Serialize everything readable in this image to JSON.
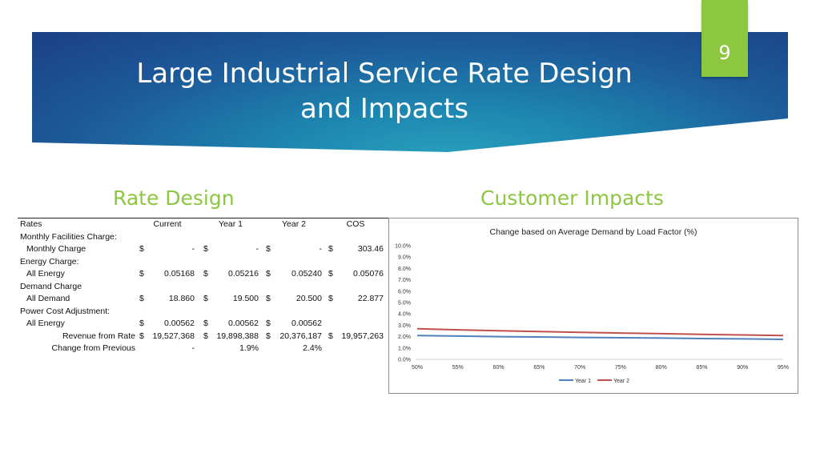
{
  "slide": {
    "title_lines": [
      "Large Industrial Service Rate Design",
      "and Impacts"
    ],
    "page_number": "9"
  },
  "left_heading": "Rate Design",
  "right_heading": "Customer Impacts",
  "rate_table": {
    "header": {
      "label": "Rates",
      "cols": [
        "Current",
        "Year 1",
        "Year 2",
        "COS"
      ]
    },
    "rows": [
      {
        "label": "Monthly Facilities Charge:"
      },
      {
        "label": "Monthly Charge",
        "vals": [
          "$",
          "-",
          "$",
          "-",
          "$",
          "-",
          "$",
          "303.46"
        ]
      },
      {
        "label": "Energy Charge:"
      },
      {
        "label": "All Energy",
        "vals": [
          "$",
          "0.05168",
          "$",
          "0.05216",
          "$",
          "0.05240",
          "$",
          "0.05076"
        ]
      },
      {
        "label": "Demand Charge"
      },
      {
        "label": "All Demand",
        "vals": [
          "$",
          "18.860",
          "$",
          "19.500",
          "$",
          "20.500",
          "$",
          "22.877"
        ]
      },
      {
        "label": "Power Cost Adjustment:"
      },
      {
        "label": "All Energy",
        "vals": [
          "$",
          "0.00562",
          "$",
          "0.00562",
          "$",
          "0.00562",
          "",
          ""
        ]
      },
      {
        "label": "Revenue from Rate",
        "vals": [
          "$",
          "19,527,368",
          "$",
          "19,898,388",
          "$",
          "20,376,187",
          "$",
          "19,957,263"
        ]
      },
      {
        "label": "Change from Previous",
        "vals": [
          "",
          "-",
          "",
          "1.9%",
          "",
          "2.4%",
          "",
          ""
        ]
      }
    ]
  },
  "chart_data": {
    "type": "line",
    "title": "Change based on Average Demand by Load Factor (%)",
    "x": [
      "50%",
      "55%",
      "60%",
      "65%",
      "70%",
      "75%",
      "80%",
      "85%",
      "90%",
      "95%"
    ],
    "y_ticks": [
      "0.0%",
      "1.0%",
      "2.0%",
      "3.0%",
      "4.0%",
      "5.0%",
      "6.0%",
      "7.0%",
      "8.0%",
      "9.0%",
      "10.0%"
    ],
    "ylim": [
      0,
      10
    ],
    "grid": false,
    "legend_position": "bottom",
    "series": [
      {
        "name": "Year 1",
        "color": "#4f81bd",
        "values": [
          2.1,
          2.05,
          2.0,
          1.97,
          1.93,
          1.9,
          1.87,
          1.83,
          1.8,
          1.76
        ]
      },
      {
        "name": "Year 2",
        "color": "#c0504d",
        "values": [
          2.7,
          2.6,
          2.52,
          2.45,
          2.38,
          2.32,
          2.26,
          2.2,
          2.15,
          2.1
        ]
      }
    ]
  }
}
